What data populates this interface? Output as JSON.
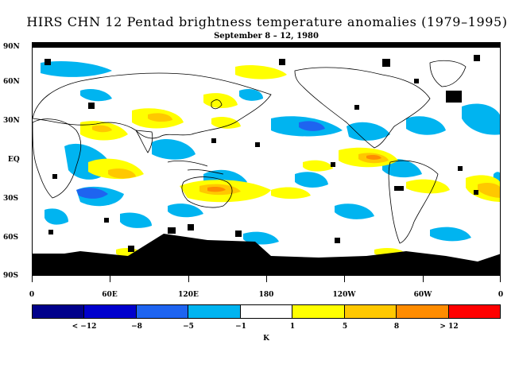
{
  "title": "HIRS CHN 12 Pentad brightness temperature anomalies (1979–1995)",
  "subtitle": "September 8 – 12, 1980",
  "lat_labels": [
    "90N",
    "60N",
    "30N",
    "EQ",
    "30S",
    "60S",
    "90S"
  ],
  "lon_labels": [
    "0",
    "60E",
    "120E",
    "180",
    "120W",
    "60W",
    "0"
  ],
  "colorbar": {
    "unit": "K",
    "tick_labels": [
      "< −12",
      "−8",
      "−5",
      "−1",
      "1",
      "5",
      "8",
      "> 12"
    ],
    "colors": [
      "#00008b",
      "#0000cd",
      "#1e64f0",
      "#00b4f0",
      "#ffffff",
      "#ffff00",
      "#ffc800",
      "#ff8c00",
      "#ff0000"
    ]
  },
  "map": {
    "ocean_color": "#ffffff",
    "missing_color": "#000000",
    "coastline_color": "#000000",
    "region": "global, 90S to 90N, 0 to 360"
  }
}
